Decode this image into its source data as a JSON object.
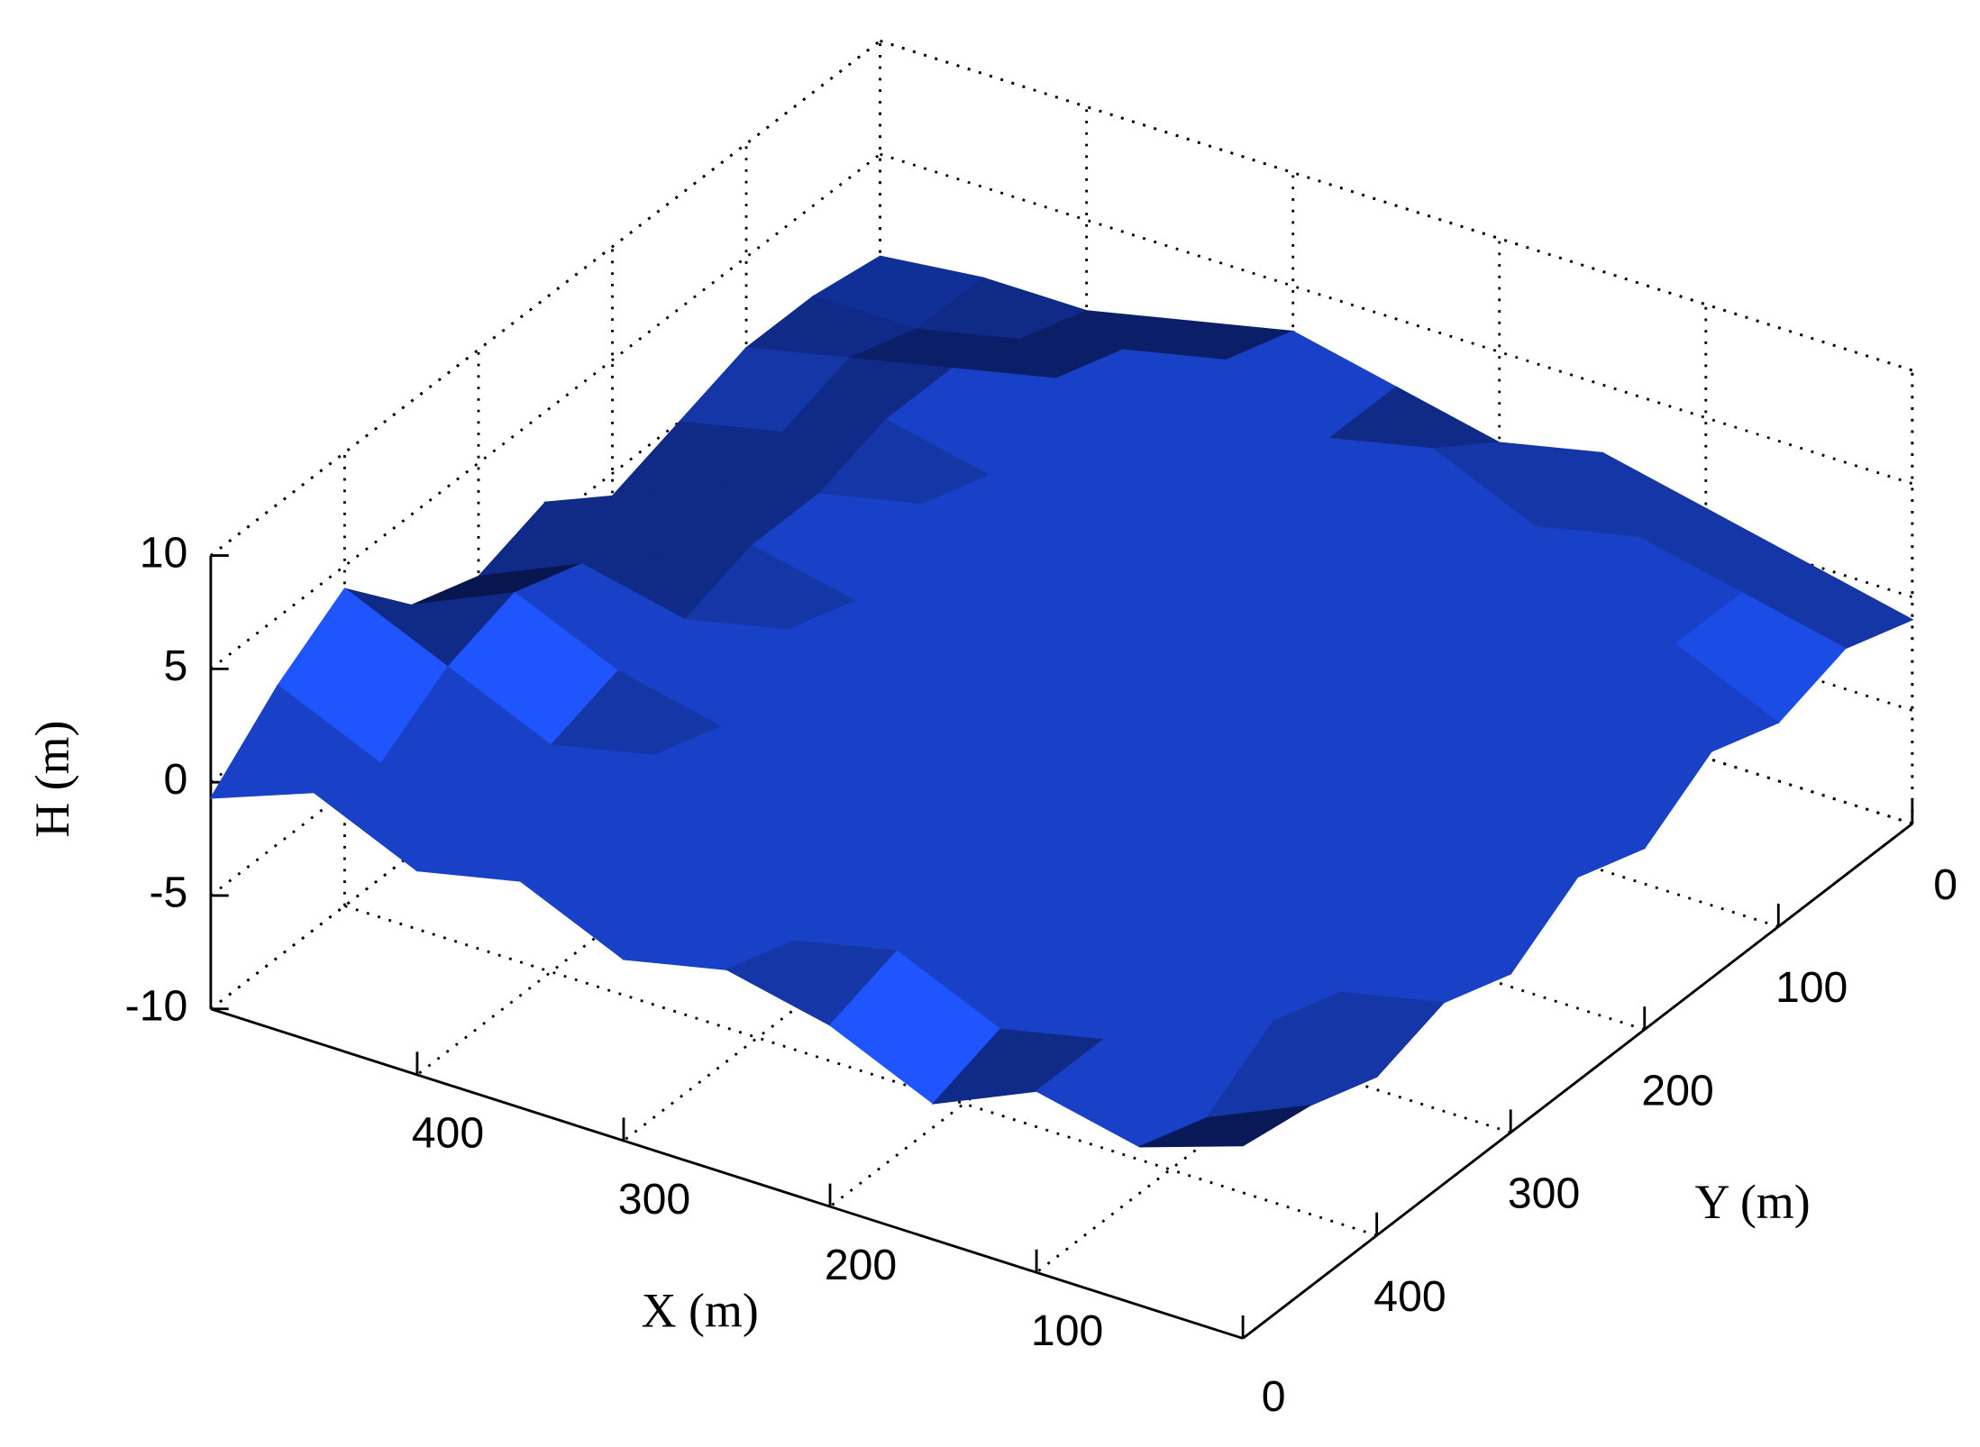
{
  "chart_data": {
    "type": "surface",
    "x_label": "X (m)",
    "y_label": "Y (m)",
    "z_label": "H (m)",
    "x": [
      0,
      50,
      100,
      150,
      200,
      250,
      300,
      350,
      400,
      450,
      500
    ],
    "y": [
      0,
      50,
      100,
      150,
      200,
      250,
      300,
      350,
      400,
      450,
      500
    ],
    "z": [
      [
        -1,
        0,
        1,
        2,
        1,
        2,
        3,
        2,
        1,
        1,
        0.5
      ],
      [
        0,
        1,
        2,
        1,
        3,
        2,
        4,
        3,
        2,
        1,
        1
      ],
      [
        -1,
        1,
        0,
        2,
        1,
        3,
        2,
        4,
        3,
        2,
        1
      ],
      [
        0,
        -1,
        1,
        0,
        2,
        1,
        3,
        2,
        3,
        1,
        0
      ],
      [
        -2,
        0,
        -1,
        1,
        0,
        2,
        1,
        3,
        2,
        1,
        -1
      ],
      [
        -1,
        -2,
        0,
        -1,
        1,
        0,
        2,
        1,
        2,
        0,
        1
      ],
      [
        -3,
        -1,
        -2,
        0,
        -1,
        1,
        0,
        2,
        1,
        2,
        0
      ],
      [
        -2,
        -3,
        -1,
        -2,
        0,
        -1,
        1,
        0,
        1,
        3,
        1
      ],
      [
        -3,
        -2,
        -3,
        -1,
        -2,
        0,
        -1,
        1,
        0,
        2,
        4
      ],
      [
        -2,
        -4,
        -2,
        -3,
        -1,
        -2,
        0,
        -1,
        1,
        0,
        2
      ],
      [
        -1.5,
        -3,
        -2,
        -4,
        -2,
        -1,
        -2,
        0,
        -1,
        1,
        -0.7
      ]
    ],
    "colormap": [
      "#08164f",
      "#1f55ff"
    ],
    "xlim": [
      0,
      500
    ],
    "ylim": [
      0,
      500
    ],
    "zlim": [
      -10,
      10
    ],
    "xticks": [
      0,
      100,
      200,
      300,
      400
    ],
    "yticks": [
      0,
      100,
      200,
      300,
      400
    ],
    "zticks": [
      -10,
      -5,
      0,
      5,
      10
    ],
    "grid": true
  }
}
